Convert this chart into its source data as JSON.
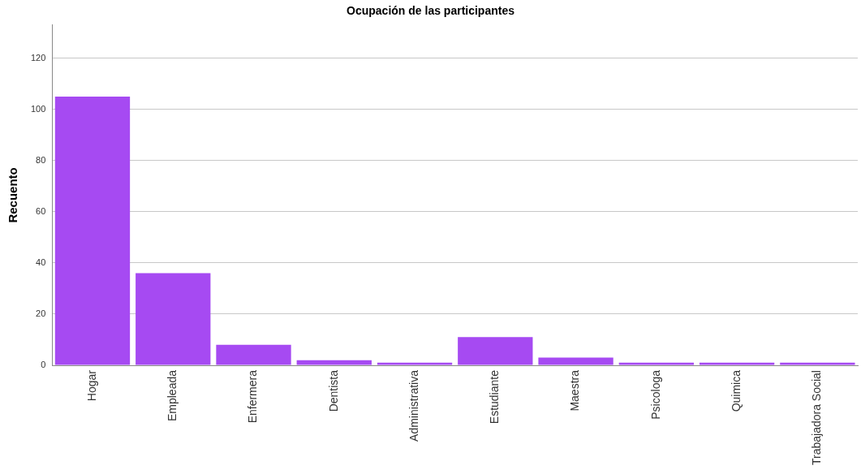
{
  "chart_data": {
    "type": "bar",
    "title": "Ocupación de las participantes",
    "ylabel": "Recuento",
    "categories": [
      "Hogar",
      "Empleada",
      "Enfermera",
      "Dentista",
      "Administrativa",
      "Estudiante",
      "Maestra",
      "Psicologa",
      "Quimica",
      "Trabajadora Social"
    ],
    "values": [
      105,
      36,
      8,
      2,
      1,
      11,
      3,
      1,
      1,
      1
    ],
    "color": "#a64af2",
    "ylim": [
      0,
      133
    ],
    "yticks": [
      0,
      20,
      40,
      60,
      80,
      100,
      120
    ],
    "grid": "y",
    "legend": false
  }
}
